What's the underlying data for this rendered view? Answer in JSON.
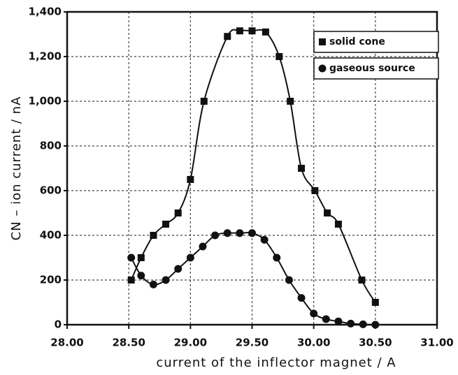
{
  "chart_data": {
    "type": "line",
    "xlabel": "current of the inflector magnet / A",
    "ylabel": "CN – ion current / nA",
    "xlim": [
      28,
      31
    ],
    "xticks": [
      {
        "value": 28,
        "label": "28.00"
      },
      {
        "value": 28.5,
        "label": "28.50"
      },
      {
        "value": 29,
        "label": "29.00"
      },
      {
        "value": 29.5,
        "label": "29.50"
      },
      {
        "value": 30,
        "label": "30.00"
      },
      {
        "value": 30.5,
        "label": "30.50"
      },
      {
        "value": 31,
        "label": "31.00"
      }
    ],
    "ylim": [
      0,
      1400
    ],
    "yticks": [
      0,
      200,
      400,
      600,
      800,
      {
        "value": 1000,
        "label": "1,000"
      },
      {
        "value": 1200,
        "label": "1,200"
      },
      {
        "value": 1400,
        "label": "1,400"
      }
    ],
    "grid": true,
    "legend": "upper right",
    "series": [
      {
        "name": "solid cone",
        "color": "#111111",
        "marker": "square",
        "x": [
          28.52,
          28.6,
          28.7,
          28.8,
          28.9,
          29.0,
          29.11,
          29.3,
          29.4,
          29.5,
          29.61,
          29.72,
          29.81,
          29.9,
          30.01,
          30.11,
          30.2,
          30.39,
          30.5
        ],
        "values": [
          200,
          300,
          400,
          450,
          500,
          650,
          1000,
          1290,
          1315,
          1315,
          1310,
          1200,
          1000,
          700,
          600,
          500,
          450,
          200,
          100
        ]
      },
      {
        "name": "gaseous source",
        "color": "#111111",
        "marker": "circle",
        "x": [
          28.52,
          28.6,
          28.7,
          28.8,
          28.9,
          29.0,
          29.1,
          29.2,
          29.3,
          29.4,
          29.5,
          29.6,
          29.7,
          29.8,
          29.9,
          30.0,
          30.1,
          30.2,
          30.3,
          30.4,
          30.5
        ],
        "values": [
          300,
          220,
          180,
          200,
          250,
          300,
          350,
          400,
          410,
          410,
          410,
          380,
          300,
          200,
          120,
          50,
          25,
          15,
          5,
          2,
          0
        ]
      }
    ]
  }
}
